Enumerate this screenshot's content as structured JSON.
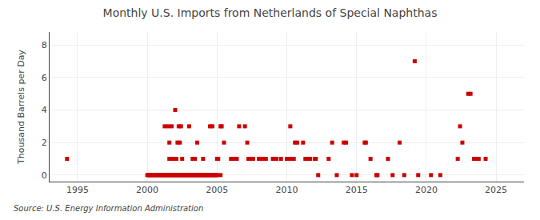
{
  "chart_data": {
    "type": "scatter",
    "title": "Monthly U.S. Imports from Netherlands of Special Naphthas",
    "y_label": "Thousand Barrels per Day",
    "annotation": "Source: U.S. Energy Information Administration",
    "color": "#cc0000",
    "marker": "square",
    "grid": true,
    "xlim": [
      1993.0,
      2027.0
    ],
    "ylim": [
      -0.4,
      8.8
    ],
    "xticks": [
      1995,
      2000,
      2005,
      2010,
      2015,
      2020,
      2025
    ],
    "yticks": [
      0,
      2,
      4,
      6,
      8
    ],
    "x": [
      1994.25,
      2000.0,
      2000.083,
      2000.167,
      2000.25,
      2000.333,
      2000.417,
      2000.5,
      2000.583,
      2000.667,
      2000.75,
      2000.833,
      2000.917,
      2001.0,
      2001.083,
      2001.167,
      2001.25,
      2001.333,
      2001.417,
      2001.5,
      2001.583,
      2001.667,
      2001.75,
      2001.833,
      2001.917,
      2002.0,
      2002.083,
      2002.167,
      2002.25,
      2002.333,
      2002.417,
      2002.5,
      2002.583,
      2002.667,
      2002.75,
      2002.833,
      2002.917,
      2003.0,
      2003.083,
      2003.167,
      2003.25,
      2003.333,
      2003.417,
      2003.5,
      2003.583,
      2003.667,
      2003.75,
      2003.833,
      2003.917,
      2004.0,
      2004.083,
      2004.167,
      2004.25,
      2004.333,
      2004.417,
      2004.5,
      2004.583,
      2004.667,
      2004.75,
      2004.833,
      2004.917,
      2001.25,
      2001.5,
      2001.75,
      2001.583,
      2001.667,
      2001.917,
      2001.583,
      2002.0,
      2002.167,
      2002.333,
      2002.25,
      2002.417,
      2002.083,
      2002.5,
      2003.0,
      2003.25,
      2003.417,
      2003.583,
      2004.5,
      2004.667,
      2004.0,
      2005.0,
      2005.083,
      2005.25,
      2005.333,
      2005.5,
      2005.0,
      2005.25,
      2006.0,
      2006.083,
      2006.25,
      2006.417,
      2006.583,
      2007.0,
      2007.25,
      2007.417,
      2007.5,
      2007.583,
      2007.167,
      2008.0,
      2008.083,
      2008.25,
      2008.5,
      2009.0,
      2009.083,
      2009.25,
      2009.583,
      2010.25,
      2010.583,
      2010.75,
      2010.0,
      2010.167,
      2010.333,
      2010.5,
      2011.167,
      2011.333,
      2011.5,
      2011.583,
      2011.667,
      2012.0,
      2012.083,
      2012.25,
      2013.0,
      2013.25,
      2013.583,
      2014.083,
      2014.25,
      2014.667,
      2015.0,
      2015.583,
      2015.667,
      2016.0,
      2016.417,
      2016.5,
      2017.583,
      2017.25,
      2018.083,
      2018.417,
      2019.167,
      2019.417,
      2020.333,
      2021.0,
      2022.25,
      2022.417,
      2022.583,
      2023.0,
      2023.167,
      2023.417,
      2023.5,
      2023.583,
      2023.667,
      2023.75,
      2024.25
    ],
    "values": [
      1,
      0,
      0,
      0,
      0,
      0,
      0,
      0,
      0,
      0,
      0,
      0,
      0,
      0,
      0,
      0,
      0,
      0,
      0,
      0,
      0,
      0,
      0,
      0,
      0,
      0,
      0,
      0,
      0,
      0,
      0,
      0,
      0,
      0,
      0,
      0,
      0,
      0,
      0,
      0,
      0,
      0,
      0,
      0,
      0,
      0,
      0,
      0,
      0,
      0,
      0,
      0,
      0,
      0,
      0,
      0,
      0,
      0,
      0,
      0,
      0,
      3,
      3,
      3,
      1,
      1,
      1,
      2,
      4,
      2,
      2,
      3,
      3,
      1,
      1,
      3,
      1,
      1,
      2,
      3,
      3,
      1,
      1,
      1,
      3,
      3,
      2,
      0,
      0,
      1,
      1,
      1,
      1,
      3,
      3,
      1,
      1,
      1,
      1,
      2,
      1,
      1,
      1,
      1,
      1,
      1,
      1,
      1,
      3,
      2,
      2,
      1,
      1,
      1,
      1,
      2,
      1,
      1,
      1,
      1,
      1,
      1,
      0,
      1,
      2,
      0,
      2,
      2,
      0,
      0,
      2,
      2,
      1,
      0,
      0,
      0,
      1,
      2,
      0,
      7,
      0,
      0,
      0,
      1,
      3,
      2,
      5,
      5,
      1,
      1,
      1,
      1,
      1,
      1
    ]
  }
}
